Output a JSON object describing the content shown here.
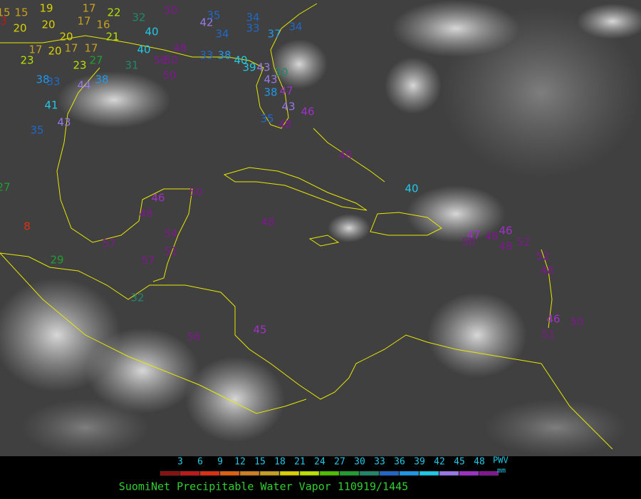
{
  "stations": [
    15,
    15,
    3,
    19,
    17,
    22,
    32,
    50,
    20,
    20,
    17,
    16,
    40,
    42,
    35,
    34,
    33,
    37,
    34,
    17,
    20,
    20,
    17,
    17,
    21,
    40,
    48,
    34,
    23,
    23,
    27,
    31,
    58,
    50,
    33,
    38,
    40,
    39,
    43,
    30,
    38,
    33,
    44,
    38,
    50,
    43,
    38,
    47,
    41,
    43,
    46,
    35,
    43,
    35,
    48,
    48,
    40,
    27,
    46,
    50,
    48,
    8,
    48,
    57,
    54,
    51,
    57,
    29,
    47,
    48,
    46,
    52,
    50,
    48,
    52,
    48,
    32,
    56,
    45,
    46,
    50,
    51
  ],
  "colorbar": {
    "ticks": [
      3,
      6,
      9,
      12,
      15,
      18,
      21,
      24,
      27,
      30,
      33,
      36,
      39,
      42,
      45,
      48
    ],
    "colors": [
      "#8a1010",
      "#c01818",
      "#e03010",
      "#e06010",
      "#d08020",
      "#c8a020",
      "#d8d000",
      "#b8e000",
      "#50c000",
      "#20a030",
      "#208868",
      "#2068c8",
      "#2098e8",
      "#20c8e8",
      "#9878e8",
      "#a030c8",
      "#801890"
    ],
    "unit_top": "PWV",
    "unit_bottom": "mm"
  },
  "title": "SuomiNet Precipitable Water Vapor 110919/1445"
}
